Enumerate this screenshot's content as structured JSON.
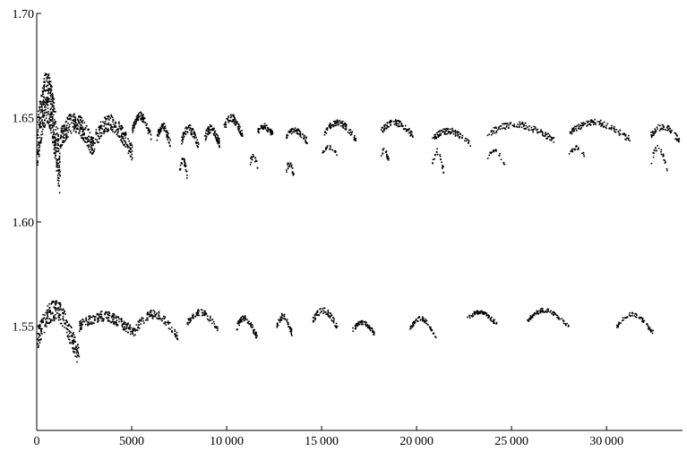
{
  "chart_data": {
    "type": "scatter",
    "title": "",
    "xlabel": "",
    "ylabel": "",
    "xlim": [
      0,
      34000
    ],
    "ylim": [
      1.5,
      1.7
    ],
    "grid": false,
    "legend": "none",
    "x_ticks": [
      {
        "value": 0,
        "label": "0"
      },
      {
        "value": 5000,
        "label": "5000"
      },
      {
        "value": 10000,
        "label": "10 000"
      },
      {
        "value": 15000,
        "label": "15 000"
      },
      {
        "value": 20000,
        "label": "20 000"
      },
      {
        "value": 25000,
        "label": "25 000"
      },
      {
        "value": 30000,
        "label": "30 000"
      }
    ],
    "y_ticks": [
      {
        "value": 1.55,
        "label": "1.55"
      },
      {
        "value": 1.6,
        "label": "1.60"
      },
      {
        "value": 1.65,
        "label": "1.65"
      },
      {
        "value": 1.7,
        "label": "1.70"
      }
    ],
    "point_color": "#000000",
    "series": [
      {
        "name": "",
        "description_free": true,
        "segments": [
          {
            "x": [
              0,
              1200
            ],
            "y": [
              1.615,
              1.66
            ],
            "spread": 0.025,
            "count": 420
          },
          {
            "x": [
              1200,
              3000
            ],
            "y": [
              1.632,
              1.648
            ],
            "spread": 0.01,
            "count": 260
          },
          {
            "x": [
              3000,
              5000
            ],
            "y": [
              1.63,
              1.648
            ],
            "spread": 0.008,
            "count": 200
          },
          {
            "x": [
              5000,
              6000
            ],
            "y": [
              1.638,
              1.651
            ],
            "spread": 0.004,
            "count": 90
          },
          {
            "x": [
              6300,
              7000
            ],
            "y": [
              1.636,
              1.646
            ],
            "spread": 0.004,
            "count": 70
          },
          {
            "x": [
              7600,
              8500
            ],
            "y": [
              1.634,
              1.645
            ],
            "spread": 0.004,
            "count": 70
          },
          {
            "x": [
              8800,
              9600
            ],
            "y": [
              1.636,
              1.645
            ],
            "spread": 0.004,
            "count": 70
          },
          {
            "x": [
              9800,
              10800
            ],
            "y": [
              1.64,
              1.65
            ],
            "spread": 0.004,
            "count": 80
          },
          {
            "x": [
              11600,
              12400
            ],
            "y": [
              1.641,
              1.646
            ],
            "spread": 0.003,
            "count": 60
          },
          {
            "x": [
              13100,
              14200
            ],
            "y": [
              1.638,
              1.644
            ],
            "spread": 0.003,
            "count": 70
          },
          {
            "x": [
              15100,
              16800
            ],
            "y": [
              1.638,
              1.648
            ],
            "spread": 0.003,
            "count": 90
          },
          {
            "x": [
              18100,
              19800
            ],
            "y": [
              1.64,
              1.648
            ],
            "spread": 0.003,
            "count": 90
          },
          {
            "x": [
              20800,
              22800
            ],
            "y": [
              1.636,
              1.644
            ],
            "spread": 0.003,
            "count": 90
          },
          {
            "x": [
              23700,
              27200
            ],
            "y": [
              1.638,
              1.647
            ],
            "spread": 0.003,
            "count": 130
          },
          {
            "x": [
              28000,
              31200
            ],
            "y": [
              1.638,
              1.648
            ],
            "spread": 0.003,
            "count": 120
          },
          {
            "x": [
              32300,
              33800
            ],
            "y": [
              1.638,
              1.646
            ],
            "spread": 0.003,
            "count": 70
          },
          {
            "x": [
              7500,
              7900
            ],
            "y": [
              1.62,
              1.63
            ],
            "spread": 0.004,
            "count": 30
          },
          {
            "x": [
              11200,
              11600
            ],
            "y": [
              1.625,
              1.632
            ],
            "spread": 0.003,
            "count": 20
          },
          {
            "x": [
              13100,
              13500
            ],
            "y": [
              1.622,
              1.628
            ],
            "spread": 0.003,
            "count": 25
          },
          {
            "x": [
              15000,
              15800
            ],
            "y": [
              1.632,
              1.636
            ],
            "spread": 0.002,
            "count": 25
          },
          {
            "x": [
              18100,
              18500
            ],
            "y": [
              1.628,
              1.635
            ],
            "spread": 0.003,
            "count": 20
          },
          {
            "x": [
              20800,
              21400
            ],
            "y": [
              1.622,
              1.634
            ],
            "spread": 0.003,
            "count": 25
          },
          {
            "x": [
              23700,
              24600
            ],
            "y": [
              1.626,
              1.635
            ],
            "spread": 0.002,
            "count": 20
          },
          {
            "x": [
              28000,
              28900
            ],
            "y": [
              1.63,
              1.636
            ],
            "spread": 0.002,
            "count": 20
          },
          {
            "x": [
              32300,
              33200
            ],
            "y": [
              1.622,
              1.636
            ],
            "spread": 0.003,
            "count": 25
          },
          {
            "x": [
              0,
              2200
            ],
            "y": [
              1.53,
              1.558
            ],
            "spread": 0.01,
            "count": 260
          },
          {
            "x": [
              2200,
              5200
            ],
            "y": [
              1.545,
              1.555
            ],
            "spread": 0.005,
            "count": 200
          },
          {
            "x": [
              5200,
              7400
            ],
            "y": [
              1.543,
              1.556
            ],
            "spread": 0.004,
            "count": 110
          },
          {
            "x": [
              7900,
              9500
            ],
            "y": [
              1.547,
              1.557
            ],
            "spread": 0.003,
            "count": 80
          },
          {
            "x": [
              10400,
              11600
            ],
            "y": [
              1.542,
              1.554
            ],
            "spread": 0.003,
            "count": 70
          },
          {
            "x": [
              12600,
              13400
            ],
            "y": [
              1.545,
              1.555
            ],
            "spread": 0.003,
            "count": 50
          },
          {
            "x": [
              14500,
              15800
            ],
            "y": [
              1.548,
              1.558
            ],
            "spread": 0.003,
            "count": 70
          },
          {
            "x": [
              16600,
              17800
            ],
            "y": [
              1.545,
              1.552
            ],
            "spread": 0.002,
            "count": 60
          },
          {
            "x": [
              19600,
              21000
            ],
            "y": [
              1.543,
              1.554
            ],
            "spread": 0.002,
            "count": 60
          },
          {
            "x": [
              22600,
              24200
            ],
            "y": [
              1.55,
              1.557
            ],
            "spread": 0.002,
            "count": 70
          },
          {
            "x": [
              25800,
              28000
            ],
            "y": [
              1.548,
              1.558
            ],
            "spread": 0.002,
            "count": 90
          },
          {
            "x": [
              30500,
              32500
            ],
            "y": [
              1.544,
              1.556
            ],
            "spread": 0.002,
            "count": 70
          }
        ]
      }
    ]
  }
}
